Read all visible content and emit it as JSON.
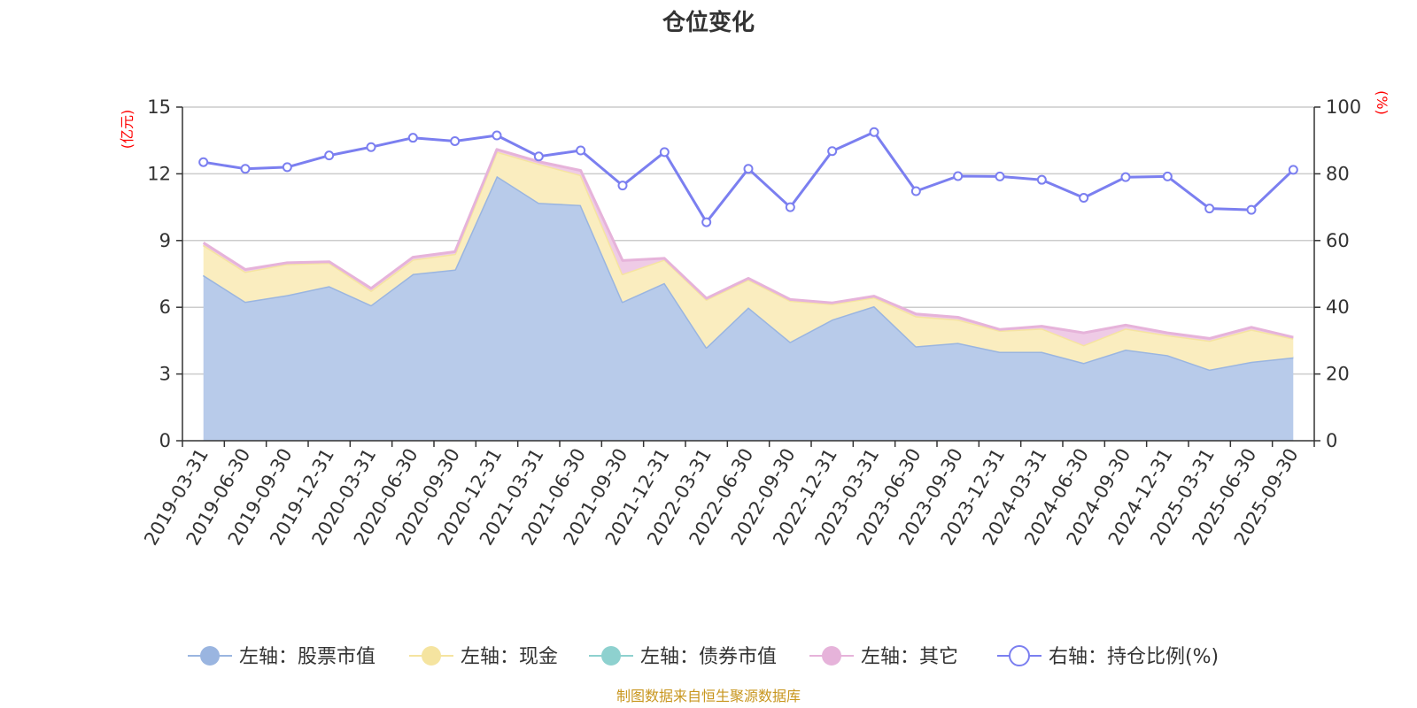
{
  "chart_data": {
    "type": "area",
    "title": "仓位变化",
    "source": "制图数据来自恒生聚源数据库",
    "left_axis": {
      "unit": "(亿元)",
      "ylim": [
        0,
        15
      ],
      "ticks": [
        "0",
        "3",
        "6",
        "9",
        "12",
        "15"
      ]
    },
    "right_axis": {
      "unit": "(%)",
      "ylim": [
        0,
        100
      ],
      "ticks": [
        "0",
        "20",
        "40",
        "60",
        "80",
        "100"
      ]
    },
    "categories": [
      "2019-03-31",
      "2019-06-30",
      "2019-09-30",
      "2019-12-31",
      "2020-03-31",
      "2020-06-30",
      "2020-09-30",
      "2020-12-31",
      "2021-03-31",
      "2021-06-30",
      "2021-09-30",
      "2021-12-31",
      "2022-03-31",
      "2022-06-30",
      "2022-09-30",
      "2022-12-31",
      "2023-03-31",
      "2023-06-30",
      "2023-09-30",
      "2023-12-31",
      "2024-03-31",
      "2024-06-30",
      "2024-09-30",
      "2024-12-31",
      "2025-03-31",
      "2025-06-30",
      "2025-09-30"
    ],
    "series": [
      {
        "name": "左轴：股票市值",
        "axis": "left",
        "color": "#9ab5e0",
        "fill": "#b8cbea",
        "values": [
          7.45,
          6.25,
          6.55,
          6.95,
          6.1,
          7.5,
          7.7,
          11.9,
          10.7,
          10.6,
          6.25,
          7.1,
          4.2,
          6.0,
          4.45,
          5.45,
          6.05,
          4.25,
          4.4,
          4.0,
          4.0,
          3.5,
          4.1,
          3.85,
          3.2,
          3.55,
          3.75
        ]
      },
      {
        "name": "左轴：现金",
        "axis": "left",
        "color": "#f5e4a0",
        "fill": "#faedbf",
        "values": [
          1.35,
          1.35,
          1.4,
          1.05,
          0.65,
          0.65,
          0.7,
          1.1,
          1.75,
          1.35,
          1.25,
          1.05,
          2.15,
          1.25,
          1.85,
          0.7,
          0.4,
          1.35,
          1.05,
          0.95,
          1.05,
          0.8,
          0.95,
          0.9,
          1.3,
          1.45,
          0.85
        ]
      },
      {
        "name": "左轴：债券市值",
        "axis": "left",
        "color": "#8ed1cf",
        "fill": "#bfe5e4",
        "values": [
          0,
          0,
          0,
          0,
          0,
          0,
          0,
          0,
          0,
          0,
          0,
          0,
          0,
          0,
          0,
          0,
          0,
          0,
          0,
          0,
          0,
          0,
          0,
          0,
          0,
          0,
          0
        ]
      },
      {
        "name": "左轴：其它",
        "axis": "left",
        "color": "#e6b3da",
        "fill": "#efcbe6",
        "values": [
          0.1,
          0.1,
          0.05,
          0.05,
          0.1,
          0.1,
          0.1,
          0.1,
          0.1,
          0.2,
          0.6,
          0.05,
          0.05,
          0.05,
          0.05,
          0.05,
          0.05,
          0.1,
          0.1,
          0.05,
          0.1,
          0.55,
          0.15,
          0.1,
          0.1,
          0.1,
          0.05
        ]
      },
      {
        "name": "右轴：持仓比例(%)",
        "axis": "right",
        "color": "#7b7ff0",
        "values": [
          83.5,
          81.5,
          82.0,
          85.5,
          88.0,
          90.8,
          89.8,
          91.5,
          85.2,
          87.0,
          76.5,
          86.5,
          65.5,
          81.5,
          70.0,
          86.8,
          92.5,
          74.8,
          79.3,
          79.2,
          78.2,
          72.8,
          79.0,
          79.2,
          69.6,
          69.2,
          81.2
        ]
      }
    ]
  }
}
